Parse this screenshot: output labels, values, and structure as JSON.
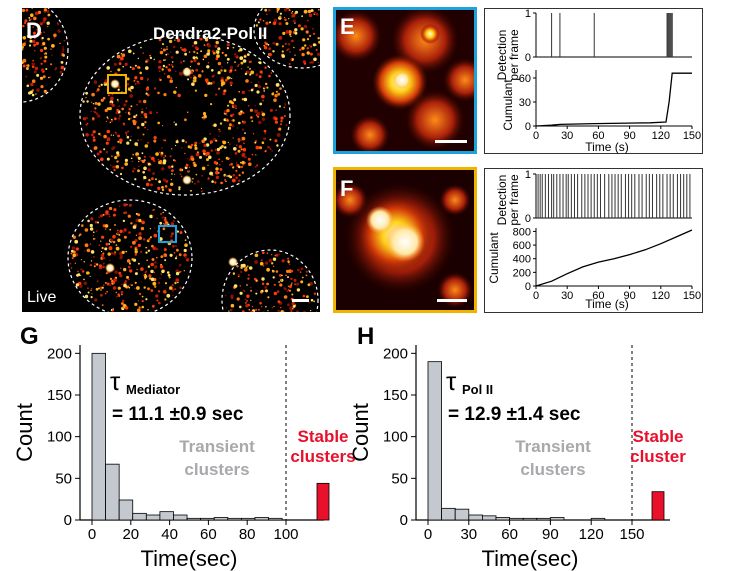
{
  "panels": {
    "D": {
      "letter": "D",
      "title": "Dendra2-Pol II",
      "corner": "Live"
    },
    "E": {
      "letter": "E"
    },
    "F": {
      "letter": "F"
    },
    "G": {
      "letter": "G"
    },
    "H": {
      "letter": "H"
    }
  },
  "colors": {
    "blue_box": "#1aa3dc",
    "yellow_box": "#f0b400",
    "red": "#e8102a",
    "gray_bar": "#c4c9cf",
    "text_gray": "#a7a9ac"
  },
  "chart_data": [
    {
      "id": "E-detection",
      "type": "bar",
      "ylabel": "Detection per frame",
      "xlim": [
        0,
        150
      ],
      "events_x": [
        15,
        23,
        56,
        126,
        127,
        128,
        129,
        130,
        131
      ]
    },
    {
      "id": "E-cumulant",
      "type": "line",
      "xlabel": "Time (s)",
      "ylabel": "Cumulant",
      "xlim": [
        0,
        150
      ],
      "ylim": [
        0,
        70
      ],
      "xticks": [
        "0",
        "30",
        "60",
        "90",
        "120",
        "150"
      ],
      "yticks": [
        "0",
        "30",
        "60"
      ],
      "x": [
        0,
        15,
        23,
        56,
        110,
        125,
        128,
        131,
        150
      ],
      "y": [
        0,
        1,
        2,
        3,
        4,
        5,
        30,
        66,
        66
      ]
    },
    {
      "id": "F-detection",
      "type": "bar",
      "ylabel": "Detection per frame",
      "xlim": [
        0,
        150
      ],
      "events_x": [
        2,
        4,
        6,
        9,
        12,
        15,
        17,
        20,
        23,
        26,
        29,
        31,
        34,
        37,
        40,
        44,
        47,
        50,
        53,
        56,
        59,
        62,
        66,
        70,
        73,
        76,
        79,
        82,
        86,
        89,
        92,
        95,
        99,
        102,
        106,
        109,
        112,
        116,
        119,
        122,
        126,
        129,
        132,
        136,
        139,
        142,
        145,
        148
      ]
    },
    {
      "id": "F-cumulant",
      "type": "line",
      "xlabel": "Time (s)",
      "ylabel": "Cumulant",
      "xlim": [
        0,
        150
      ],
      "ylim": [
        0,
        850
      ],
      "xticks": [
        "0",
        "30",
        "60",
        "90",
        "120",
        "150"
      ],
      "yticks": [
        "0",
        "200",
        "400",
        "600",
        "800"
      ],
      "x": [
        0,
        15,
        30,
        45,
        60,
        75,
        90,
        105,
        120,
        135,
        150
      ],
      "y": [
        0,
        70,
        180,
        280,
        350,
        400,
        460,
        530,
        620,
        720,
        820
      ]
    },
    {
      "id": "G",
      "type": "bar",
      "xlabel": "Time(sec)",
      "ylabel": "Count",
      "ylim": [
        0,
        210
      ],
      "xticks": [
        "0",
        "20",
        "40",
        "60",
        "80",
        "100"
      ],
      "yticks": [
        "0",
        "50",
        "100",
        "150",
        "200"
      ],
      "bins_start": [
        0,
        7,
        14,
        21,
        28,
        35,
        42,
        49,
        56,
        63,
        70,
        77,
        84,
        91
      ],
      "bin_width": 7,
      "values": [
        200,
        67,
        24,
        8,
        6,
        10,
        6,
        2,
        2,
        3,
        2,
        2,
        3,
        2
      ],
      "annotation": {
        "tau": "τ",
        "sub": "Mediator",
        "value": "= 11.1 ±0.9 sec"
      },
      "transient_label": [
        "Transient",
        "clusters"
      ],
      "stable_label": [
        "Stable",
        "clusters"
      ],
      "stable_value": 44,
      "divider_x": 100
    },
    {
      "id": "H",
      "type": "bar",
      "xlabel": "Time(sec)",
      "ylabel": "Count",
      "ylim": [
        0,
        210
      ],
      "xticks": [
        "0",
        "30",
        "60",
        "90",
        "120",
        "150"
      ],
      "yticks": [
        "0",
        "50",
        "100",
        "150",
        "200"
      ],
      "bins_start": [
        0,
        10,
        20,
        30,
        40,
        50,
        60,
        70,
        80,
        90,
        100,
        110,
        120,
        130
      ],
      "bin_width": 10,
      "values": [
        190,
        14,
        13,
        6,
        5,
        3,
        2,
        2,
        2,
        3,
        0,
        0,
        2,
        0
      ],
      "annotation": {
        "tau": "τ",
        "sub": "Pol II",
        "value": "= 12.9 ±1.4 sec"
      },
      "transient_label": [
        "Transient",
        "clusters"
      ],
      "stable_label": [
        "Stable",
        "cluster"
      ],
      "stable_value": 34,
      "divider_x": 150
    }
  ]
}
